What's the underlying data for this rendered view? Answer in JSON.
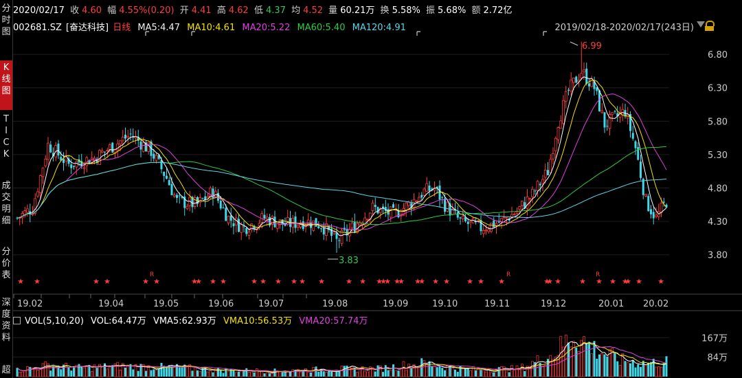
{
  "sidebar": {
    "items": [
      {
        "label": "分\n时\n图",
        "active": false
      },
      {
        "label": "K\n线\n图",
        "active": true
      },
      {
        "label": "T\nI\nC\nK",
        "active": false
      },
      {
        "label": "成\n交\n明\n细",
        "active": false
      },
      {
        "label": "分\n价\n表",
        "active": false
      },
      {
        "label": "深\n度\n资\n料",
        "active": false
      },
      {
        "label": "超",
        "active": false
      }
    ]
  },
  "quote": {
    "date": "2020/02/17",
    "close_label": "收",
    "close": "4.60",
    "change_label": "幅",
    "change": "4.55%(0.20)",
    "open_label": "开",
    "open": "4.41",
    "high_label": "高",
    "high": "4.62",
    "low_label": "低",
    "low": "4.37",
    "avg_label": "均",
    "avg": "4.52",
    "volume_label": "量",
    "volume": "60.21万",
    "turnover_label": "换",
    "turnover": "5.58%",
    "amplitude_label": "振",
    "amplitude": "5.68%",
    "amount_label": "额",
    "amount": "2.72亿"
  },
  "stock": {
    "code": "002681.SZ",
    "name": "[奋达科技]",
    "period": "日线"
  },
  "ma": {
    "ma5": "MA5:4.47",
    "ma10": "MA10:4.61",
    "ma20": "MA20:5.22",
    "ma60": "MA60:5.40",
    "ma120": "MA120:4.91"
  },
  "range": "2019/02/18-2020/02/17(243日)",
  "volume_legend": {
    "title": "VOL(5,10,20)",
    "vol": "VOL:64.47万",
    "vma5": "VMA5:62.93万",
    "vma10": "VMA10:56.53万",
    "vma20": "VMA20:57.74万"
  },
  "colors": {
    "up": "#ff3c3c",
    "down": "#3fd8e8",
    "ma5": "#ffffff",
    "ma10": "#f5e100",
    "ma20": "#e040e0",
    "ma60": "#2ecc40",
    "ma120": "#5fd4e8",
    "grid": "#333333"
  },
  "chart_data": {
    "type": "candlestick",
    "y_axis": {
      "ticks": [
        "6.80",
        "6.30",
        "5.80",
        "5.30",
        "4.80",
        "4.30",
        "3.80"
      ],
      "range": [
        3.55,
        7.1
      ]
    },
    "x_axis": {
      "ticks": [
        "19.02",
        "19.04",
        "19.05",
        "19.06",
        "19.07",
        "19.08",
        "19.09",
        "19.10",
        "19.11",
        "19.12",
        "20.01",
        "20.02"
      ]
    },
    "annotations": {
      "high_label": "6.99",
      "low_label": "3.83"
    },
    "volume_axis": {
      "ticks": [
        "167万",
        "84万"
      ],
      "max": 230
    },
    "key_points": [
      {
        "i": 0,
        "p": 4.35
      },
      {
        "i": 6,
        "p": 4.5
      },
      {
        "i": 12,
        "p": 5.45
      },
      {
        "i": 20,
        "p": 5.15
      },
      {
        "i": 30,
        "p": 5.25
      },
      {
        "i": 38,
        "p": 5.45
      },
      {
        "i": 44,
        "p": 5.6
      },
      {
        "i": 52,
        "p": 5.35
      },
      {
        "i": 58,
        "p": 4.95
      },
      {
        "i": 62,
        "p": 4.6
      },
      {
        "i": 70,
        "p": 4.55
      },
      {
        "i": 76,
        "p": 4.75
      },
      {
        "i": 82,
        "p": 4.35
      },
      {
        "i": 88,
        "p": 4.2
      },
      {
        "i": 96,
        "p": 4.35
      },
      {
        "i": 104,
        "p": 4.25
      },
      {
        "i": 112,
        "p": 4.3
      },
      {
        "i": 118,
        "p": 4.25
      },
      {
        "i": 124,
        "p": 4.0
      },
      {
        "i": 130,
        "p": 4.2
      },
      {
        "i": 138,
        "p": 4.5
      },
      {
        "i": 146,
        "p": 4.4
      },
      {
        "i": 152,
        "p": 4.55
      },
      {
        "i": 158,
        "p": 4.75
      },
      {
        "i": 162,
        "p": 4.8
      },
      {
        "i": 166,
        "p": 4.55
      },
      {
        "i": 172,
        "p": 4.3
      },
      {
        "i": 180,
        "p": 4.2
      },
      {
        "i": 188,
        "p": 4.3
      },
      {
        "i": 194,
        "p": 4.45
      },
      {
        "i": 200,
        "p": 4.7
      },
      {
        "i": 206,
        "p": 5.05
      },
      {
        "i": 210,
        "p": 5.8
      },
      {
        "i": 214,
        "p": 6.25
      },
      {
        "i": 219,
        "p": 6.55
      },
      {
        "i": 224,
        "p": 6.3
      },
      {
        "i": 228,
        "p": 5.75
      },
      {
        "i": 232,
        "p": 5.85
      },
      {
        "i": 236,
        "p": 5.95
      },
      {
        "i": 240,
        "p": 5.4
      },
      {
        "i": 244,
        "p": 4.6
      },
      {
        "i": 248,
        "p": 4.35
      },
      {
        "i": 252,
        "p": 4.6
      }
    ],
    "volume_key_points": [
      {
        "i": 0,
        "v": 28
      },
      {
        "i": 12,
        "v": 48
      },
      {
        "i": 24,
        "v": 38
      },
      {
        "i": 40,
        "v": 45
      },
      {
        "i": 60,
        "v": 40
      },
      {
        "i": 80,
        "v": 28
      },
      {
        "i": 100,
        "v": 24
      },
      {
        "i": 120,
        "v": 32
      },
      {
        "i": 140,
        "v": 34
      },
      {
        "i": 158,
        "v": 58
      },
      {
        "i": 175,
        "v": 30
      },
      {
        "i": 195,
        "v": 34
      },
      {
        "i": 208,
        "v": 95
      },
      {
        "i": 216,
        "v": 180
      },
      {
        "i": 224,
        "v": 120
      },
      {
        "i": 234,
        "v": 70
      },
      {
        "i": 244,
        "v": 58
      },
      {
        "i": 252,
        "v": 64
      }
    ]
  }
}
